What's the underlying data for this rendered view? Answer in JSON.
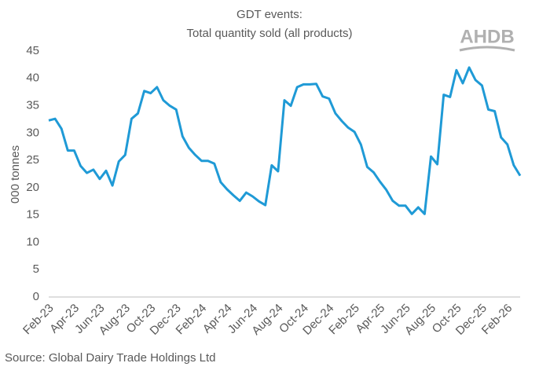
{
  "chart_data": {
    "type": "line",
    "title": "GDT events:",
    "subtitle": "Total quantity sold (all products)",
    "y_label": "000 tonnes",
    "source": "Source: Global Dairy Trade Holdings Ltd",
    "brand": "AHDB",
    "categories": [
      "Feb-23",
      null,
      null,
      null,
      "Apr-23",
      null,
      null,
      null,
      "Jun-23",
      null,
      null,
      null,
      "Aug-23",
      null,
      null,
      null,
      "Oct-23",
      null,
      null,
      null,
      "Dec-23",
      null,
      null,
      null,
      "Feb-24",
      null,
      null,
      null,
      "Apr-24",
      null,
      null,
      null,
      "Jun-24",
      null,
      null,
      null,
      "Aug-24",
      null,
      null,
      null,
      "Oct-24",
      null,
      null,
      null,
      "Dec-24",
      null,
      null,
      null,
      "Feb-25",
      null,
      null,
      null,
      "Apr-25",
      null,
      null,
      null,
      "Jun-25",
      null,
      null,
      null,
      "Aug-25",
      null,
      null,
      null,
      "Oct-25",
      null,
      null,
      null,
      "Dec-25",
      null,
      null,
      null,
      "Feb-26",
      null,
      null
    ],
    "series": [
      {
        "name": "Total quantity sold",
        "color": "#1f9ad6",
        "values": [
          32.3,
          32.6,
          30.8,
          26.8,
          26.8,
          24,
          22.7,
          23.3,
          21.6,
          23.1,
          20.4,
          24.8,
          26,
          32.6,
          33.6,
          37.7,
          37.3,
          38.4,
          36,
          35,
          34.3,
          29.4,
          27.3,
          26,
          24.9,
          24.9,
          24.4,
          21,
          19.7,
          18.6,
          17.6,
          19.1,
          18.4,
          17.5,
          16.8,
          24.1,
          23,
          36,
          35,
          38.4,
          38.9,
          38.9,
          39,
          36.7,
          36.3,
          33.6,
          32.2,
          31,
          30.2,
          27.9,
          23.8,
          22.8,
          21.1,
          19.6,
          17.6,
          16.7,
          16.7,
          15.2,
          16.4,
          15.2,
          25.7,
          24.3,
          37,
          36.6,
          41.5,
          39.1,
          42,
          39.7,
          38.7,
          34.3,
          34,
          29.2,
          27.9,
          24.1,
          22.2
        ]
      }
    ],
    "ylim": [
      0,
      45
    ],
    "yticks": [
      0,
      5,
      10,
      15,
      20,
      25,
      30,
      35,
      40,
      45
    ],
    "grid": false
  }
}
